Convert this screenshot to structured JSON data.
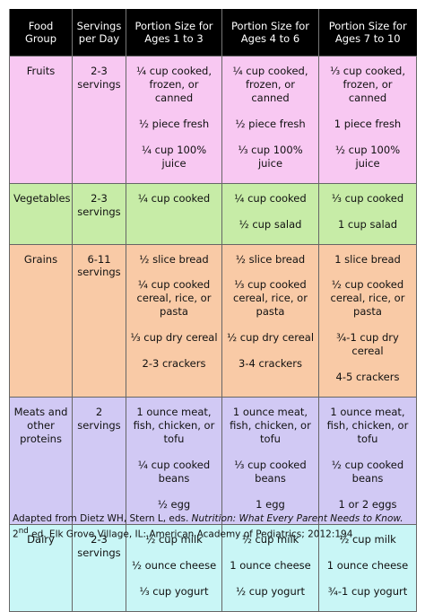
{
  "table": {
    "header": [
      "Food Group",
      "Servings per Day",
      "Portion Size for Ages 1 to 3",
      "Portion Size for Ages 4 to 6",
      "Portion Size for Ages 7 to 10"
    ],
    "rows": [
      [
        [
          "Fruits"
        ],
        [
          "2-3 servings"
        ],
        [
          "¼ cup cooked, frozen, or canned",
          "½ piece fresh",
          "¼ cup 100% juice"
        ],
        [
          "¼ cup cooked, frozen, or canned",
          "½ piece fresh",
          "⅓ cup 100% juice"
        ],
        [
          "⅓ cup cooked, frozen, or canned",
          "1 piece fresh",
          "½ cup 100% juice"
        ]
      ],
      [
        [
          "Vegetables"
        ],
        [
          "2-3 servings"
        ],
        [
          "¼ cup cooked"
        ],
        [
          "¼ cup cooked",
          "½ cup salad"
        ],
        [
          "⅓ cup cooked",
          "1 cup salad"
        ]
      ],
      [
        [
          "Grains"
        ],
        [
          "6-11 servings"
        ],
        [
          "½ slice bread",
          "¼ cup cooked cereal, rice, or pasta",
          "⅓ cup dry cereal",
          "2-3 crackers"
        ],
        [
          "½ slice bread",
          "⅓ cup cooked cereal, rice, or pasta",
          "½ cup dry cereal",
          "3-4 crackers"
        ],
        [
          "1 slice bread",
          "½ cup cooked cereal, rice, or pasta",
          "¾-1 cup dry cereal",
          "4-5 crackers"
        ]
      ],
      [
        [
          "Meats and other proteins"
        ],
        [
          "2 servings"
        ],
        [
          "1 ounce meat, fish, chicken, or tofu",
          "¼ cup cooked beans",
          "½ egg"
        ],
        [
          "1 ounce meat, fish, chicken, or tofu",
          "⅓ cup cooked beans",
          "1 egg"
        ],
        [
          "1 ounce meat, fish, chicken, or tofu",
          "½ cup cooked beans",
          "1 or 2 eggs"
        ]
      ],
      [
        [
          "Dairy"
        ],
        [
          "2-3 servings"
        ],
        [
          "½ cup milk",
          "½ ounce cheese",
          "⅓ cup yogurt"
        ],
        [
          "½ cup milk",
          "1 ounce cheese",
          "½ cup yogurt"
        ],
        [
          "½ cup milk",
          "1 ounce cheese",
          "¾-1 cup yogurt"
        ]
      ]
    ]
  },
  "footnote": {
    "before": "Adapted from Dietz WH, Stern L, eds. ",
    "italic": "Nutrition: What Every Parent Needs to Know.",
    "edition": " 2",
    "superscript": "nd",
    "after": " ed. Elk Grove Village, IL: American Academy of Pediatrics; 2012:194"
  }
}
